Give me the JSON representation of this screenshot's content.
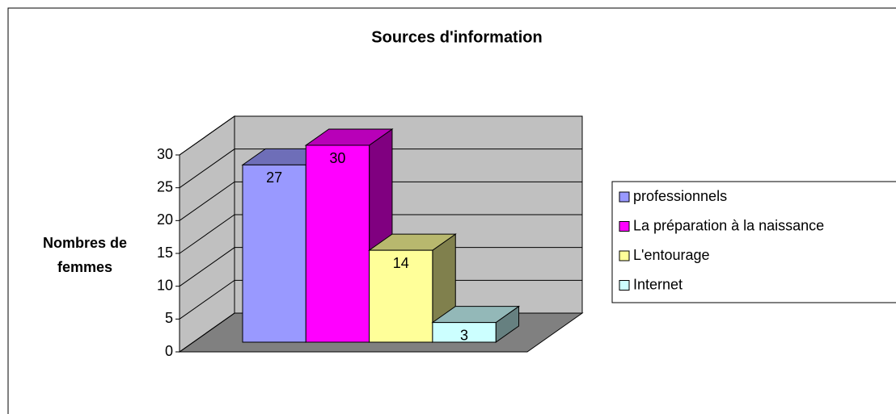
{
  "chart_data": {
    "type": "bar3d",
    "title": "Sources d'information",
    "y_label": "Nombres de femmes",
    "categories": [
      "professionnels",
      "La préparation à la naissance",
      "L'entourage",
      "Internet"
    ],
    "values": [
      27,
      30,
      14,
      3
    ],
    "colors": [
      "#9999ff",
      "#ff00ff",
      "#ffff99",
      "#ccffff"
    ],
    "ylim": [
      0,
      30
    ],
    "yticks": [
      0,
      5,
      10,
      15,
      20,
      25,
      30
    ],
    "grid": true,
    "legend": "right"
  }
}
